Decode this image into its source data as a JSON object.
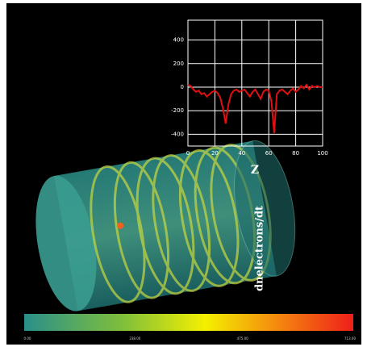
{
  "chart_data": {
    "type": "line",
    "ylabel": "dnelectrons/dt",
    "xlabel": "Z",
    "x": [
      0,
      2,
      4,
      6,
      8,
      10,
      12,
      14,
      16,
      18,
      20,
      22,
      24,
      26,
      28,
      30,
      32,
      34,
      36,
      38,
      40,
      42,
      44,
      46,
      48,
      50,
      52,
      54,
      56,
      58,
      60,
      62,
      64,
      66,
      68,
      70,
      72,
      74,
      76,
      78,
      80,
      82,
      84,
      86,
      88,
      90,
      92,
      94,
      96,
      98,
      100
    ],
    "series": [
      {
        "name": "dnelectrons/dt",
        "color": "#e01010",
        "values": [
          20,
          10,
          -20,
          -40,
          -30,
          -60,
          -50,
          -80,
          -60,
          -40,
          -30,
          -50,
          -90,
          -180,
          -310,
          -150,
          -60,
          -30,
          -20,
          -40,
          -30,
          -20,
          -50,
          -80,
          -40,
          -20,
          -60,
          -100,
          -40,
          -20,
          -30,
          -120,
          -390,
          -60,
          -30,
          -20,
          -40,
          -60,
          -30,
          -10,
          -40,
          -20,
          10,
          -10,
          20,
          -20,
          10,
          0,
          10,
          0,
          0
        ]
      }
    ],
    "xlim": [
      0,
      100
    ],
    "xticks": [
      0,
      20,
      40,
      60,
      80,
      100
    ],
    "ylim": [
      -500,
      500
    ],
    "yticks": [
      -400,
      -200,
      0,
      200,
      400
    ],
    "grid": true
  },
  "colorbar": {
    "labels": [
      "0.00",
      "238.00",
      "475.00",
      "713.00"
    ]
  }
}
